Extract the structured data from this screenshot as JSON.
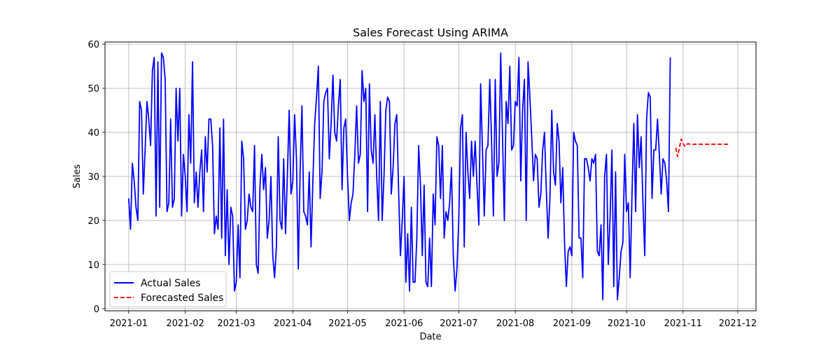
{
  "chart_data": {
    "type": "line",
    "title": "Sales Forecast Using ARIMA",
    "xlabel": "Date",
    "ylabel": "Sales",
    "xlim": [
      "2020-12-19",
      "2021-12-11"
    ],
    "ylim": [
      -0.5,
      60.5
    ],
    "grid": true,
    "legend_position": "bottom-left",
    "x_ticks": [
      "2021-01-01",
      "2021-02-01",
      "2021-03-01",
      "2021-04-01",
      "2021-05-01",
      "2021-06-01",
      "2021-07-01",
      "2021-08-01",
      "2021-09-01",
      "2021-10-01",
      "2021-11-01",
      "2021-12-01"
    ],
    "x_tick_labels": [
      "2021-01",
      "2021-02",
      "2021-03",
      "2021-04",
      "2021-05",
      "2021-06",
      "2021-07",
      "2021-08",
      "2021-09",
      "2021-10",
      "2021-11",
      "2021-12"
    ],
    "y_ticks": [
      0,
      10,
      20,
      30,
      40,
      50,
      60
    ],
    "series": [
      {
        "name": "Actual Sales",
        "color": "#0000ff",
        "style": "solid",
        "start_date": "2021-01-01",
        "values": [
          25,
          18,
          33,
          29,
          23,
          20,
          47,
          45,
          26,
          36,
          47,
          43,
          37,
          54,
          57,
          21,
          56,
          23,
          58,
          57,
          52,
          22,
          24,
          43,
          23,
          25,
          50,
          38,
          50,
          21,
          35,
          30,
          22,
          44,
          33,
          56,
          24,
          31,
          23,
          31,
          36,
          22,
          39,
          31,
          43,
          43,
          37,
          17,
          21,
          18,
          41,
          16,
          43,
          12,
          27,
          10,
          23,
          21,
          4,
          6,
          19,
          7,
          38,
          34,
          18,
          20,
          26,
          23,
          22,
          37,
          10,
          8,
          28,
          35,
          27,
          32,
          16,
          20,
          30,
          12,
          7,
          14,
          39,
          20,
          18,
          34,
          17,
          30,
          45,
          26,
          29,
          44,
          34,
          9,
          31,
          46,
          22,
          21,
          19,
          31,
          14,
          29,
          42,
          48,
          55,
          25,
          31,
          47,
          49,
          50,
          34,
          42,
          53,
          40,
          38,
          46,
          52,
          27,
          41,
          43,
          30,
          20,
          24,
          26,
          35,
          46,
          33,
          35,
          54,
          47,
          50,
          22,
          51,
          36,
          33,
          44,
          30,
          20,
          47,
          20,
          30,
          45,
          48,
          47,
          26,
          32,
          42,
          44,
          27,
          12,
          20,
          30,
          6,
          17,
          4,
          23,
          6,
          6,
          16,
          37,
          28,
          12,
          28,
          6,
          5,
          16,
          5,
          26,
          19,
          39,
          37,
          25,
          37,
          16,
          22,
          20,
          24,
          32,
          12,
          4,
          9,
          20,
          41,
          44,
          14,
          40,
          31,
          25,
          38,
          30,
          38,
          28,
          19,
          51,
          36,
          21,
          36,
          37,
          52,
          38,
          21,
          52,
          30,
          33,
          58,
          39,
          20,
          47,
          42,
          55,
          36,
          37,
          47,
          46,
          57,
          29,
          45,
          52,
          20,
          56,
          48,
          39,
          29,
          35,
          34,
          23,
          26,
          36,
          40,
          27,
          16,
          25,
          45,
          31,
          28,
          42,
          38,
          24,
          32,
          15,
          5,
          13,
          14,
          12,
          40,
          38,
          37,
          16,
          16,
          7,
          34,
          34,
          32,
          29,
          34,
          33,
          35,
          13,
          12,
          19,
          2,
          30,
          35,
          10,
          21,
          36,
          5,
          31,
          2,
          7,
          13,
          15,
          35,
          22,
          24,
          7,
          26,
          42,
          22,
          44,
          32,
          39,
          24,
          12,
          43,
          49,
          48,
          25,
          36,
          36,
          43,
          35,
          26,
          34,
          33,
          29,
          22,
          57
        ]
      },
      {
        "name": "Forecasted Sales",
        "color": "#ff0000",
        "style": "dashed",
        "start_date": "2021-10-28",
        "values": [
          36.5,
          34.5,
          36.5,
          38.5,
          37.5,
          36.8,
          37.3,
          37.4,
          37.3,
          37.2,
          37.3,
          37.3,
          37.3,
          37.3,
          37.3,
          37.3,
          37.3,
          37.3,
          37.3,
          37.3,
          37.3,
          37.3,
          37.3,
          37.3,
          37.3,
          37.3,
          37.3,
          37.3,
          37.3,
          37.3
        ]
      }
    ]
  }
}
